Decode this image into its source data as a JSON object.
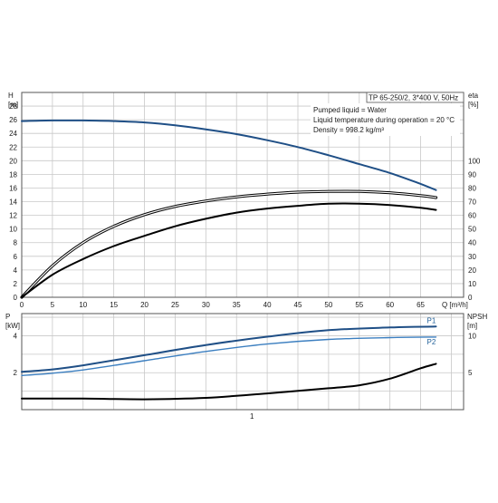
{
  "chart_data": [
    {
      "type": "line",
      "info_box": {
        "title": "TP 65-250/2, 3*400 V, 50Hz",
        "lines": [
          "Pumped liquid = Water",
          "Liquid temperature during operation = 20 °C",
          "Density = 998.2 kg/m³"
        ]
      },
      "x_axis": {
        "label": "Q [m³/h]",
        "ticks": [
          "0",
          "5",
          "10",
          "15",
          "20",
          "25",
          "30",
          "35",
          "40",
          "45",
          "50",
          "55",
          "60",
          "65"
        ],
        "range": [
          0,
          72
        ],
        "grid": true
      },
      "y_left": {
        "label_top": "H",
        "label_unit": "[m]",
        "ticks": [
          "0",
          "2",
          "4",
          "6",
          "8",
          "10",
          "12",
          "14",
          "16",
          "18",
          "20",
          "22",
          "24",
          "26",
          "28"
        ],
        "range": [
          0,
          30
        ]
      },
      "y_right": {
        "label_top": "eta",
        "label_unit": "[%]",
        "ticks": [
          "0",
          "10",
          "20",
          "30",
          "40",
          "50",
          "60",
          "70",
          "80",
          "90",
          "100"
        ],
        "range": [
          0,
          100
        ],
        "scale_note": "100% aligns with H = 20 m"
      },
      "series": [
        {
          "axis": "left",
          "color": "#1f4f86",
          "x": [
            0,
            5,
            10,
            15,
            20,
            25,
            30,
            35,
            40,
            45,
            50,
            55,
            60,
            65,
            67.5
          ],
          "y": [
            25.8,
            25.9,
            25.9,
            25.8,
            25.6,
            25.2,
            24.6,
            23.9,
            23.0,
            22.0,
            20.8,
            19.5,
            18.2,
            16.6,
            15.7
          ]
        },
        {
          "axis": "right",
          "color": "#000000",
          "x": [
            0,
            5,
            10,
            15,
            20,
            25,
            30,
            35,
            40,
            45,
            50,
            55,
            60,
            65,
            67.5
          ],
          "y": [
            0,
            23,
            40,
            52,
            60.5,
            66.5,
            70.5,
            73.5,
            75.5,
            77,
            77.5,
            77.5,
            76.5,
            74.5,
            73
          ]
        },
        {
          "axis": "left",
          "color": "#000000",
          "x": [
            0,
            5,
            10,
            15,
            20,
            25,
            30,
            35,
            40,
            45,
            50,
            55,
            60,
            65,
            67.5
          ],
          "y": [
            0,
            3.3,
            5.6,
            7.5,
            9.0,
            10.4,
            11.5,
            12.4,
            13.0,
            13.4,
            13.7,
            13.7,
            13.5,
            13.1,
            12.8
          ]
        }
      ]
    },
    {
      "type": "line",
      "x_axis": {
        "range": [
          0,
          72
        ],
        "grid": true,
        "tick_labels": [
          {
            "x": 37.5,
            "label": "1"
          }
        ]
      },
      "y_left": {
        "label_top": "P",
        "label_unit": "[kW]",
        "ticks": [
          {
            "v": 2,
            "label": "2"
          },
          {
            "v": 4,
            "label": "4"
          }
        ],
        "range": [
          0,
          5.2
        ]
      },
      "y_right": {
        "label_top": "NPSH",
        "label_unit": "[m]",
        "ticks": [
          {
            "v": 5,
            "label": "5"
          },
          {
            "v": 10,
            "label": "10"
          }
        ],
        "range": [
          0,
          13
        ]
      },
      "series": [
        {
          "name": "P1",
          "axis": "left",
          "color": "#1f4f86",
          "x": [
            0,
            5,
            10,
            20,
            30,
            40,
            50,
            60,
            67.5
          ],
          "y": [
            2.05,
            2.18,
            2.4,
            2.95,
            3.5,
            3.95,
            4.3,
            4.45,
            4.5
          ]
        },
        {
          "name": "P2",
          "axis": "left",
          "color": "#3c7fc0",
          "x": [
            0,
            5,
            10,
            20,
            30,
            40,
            50,
            60,
            67.5
          ],
          "y": [
            1.85,
            1.97,
            2.15,
            2.65,
            3.15,
            3.55,
            3.8,
            3.9,
            3.93
          ]
        },
        {
          "axis": "right",
          "color": "#000000",
          "x": [
            0,
            10,
            20,
            30,
            40,
            50,
            55,
            60,
            65,
            67.5
          ],
          "y": [
            1.5,
            1.5,
            1.4,
            1.6,
            2.2,
            2.9,
            3.3,
            4.2,
            5.6,
            6.2
          ]
        }
      ]
    }
  ]
}
